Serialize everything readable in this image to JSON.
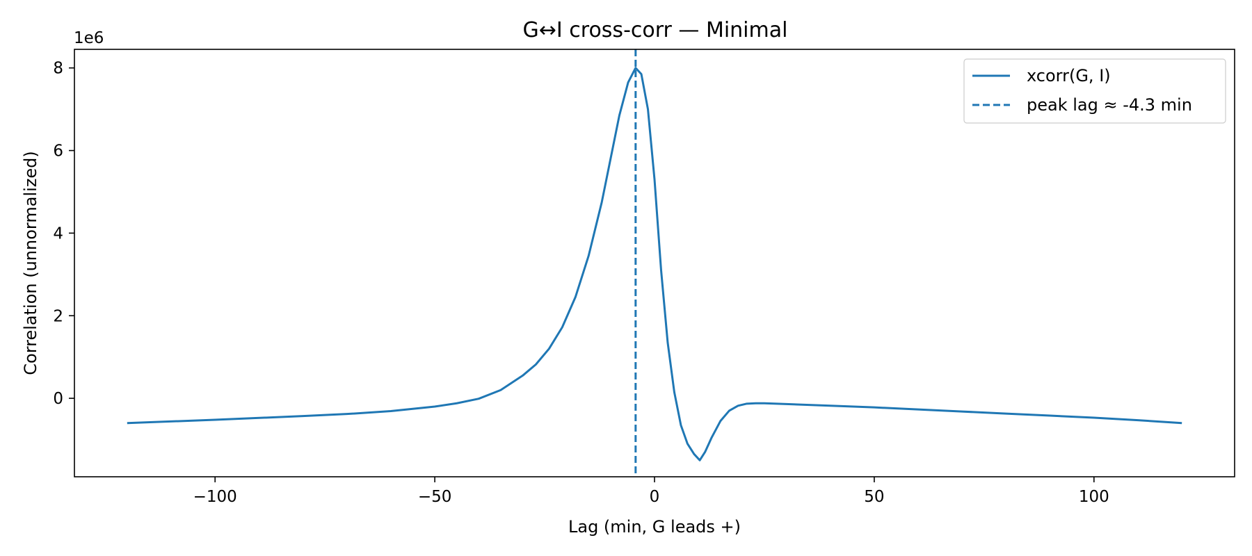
{
  "chart_data": {
    "type": "line",
    "title": "G↔I cross-corr — Minimal",
    "xlabel": "Lag (min, G leads +)",
    "ylabel": "Correlation (unnormalized)",
    "y_offset_label": "1e6",
    "xlim": [
      -132,
      132
    ],
    "ylim": [
      -1.9,
      8.45
    ],
    "xticks": [
      -100,
      -50,
      0,
      50,
      100
    ],
    "xtick_labels": [
      "−100",
      "−50",
      "0",
      "50",
      "100"
    ],
    "yticks": [
      0,
      2,
      4,
      6,
      8
    ],
    "ytick_labels": [
      "0",
      "2",
      "4",
      "6",
      "8"
    ],
    "grid": false,
    "legend": {
      "position": "top-right"
    },
    "colors": {
      "line": "#1f77b4"
    },
    "series": [
      {
        "name": "xcorr(G, I)",
        "style": "solid",
        "x": [
          -120,
          -100,
          -80,
          -70,
          -60,
          -50,
          -45,
          -40,
          -35,
          -30,
          -27,
          -24,
          -21,
          -18,
          -15,
          -12,
          -10,
          -8,
          -6,
          -4.3,
          -3,
          -1.5,
          0,
          1.5,
          3,
          4.5,
          6,
          7.5,
          9,
          10.3,
          11.5,
          13,
          15,
          17,
          19,
          21,
          23,
          25,
          30,
          40,
          50,
          60,
          70,
          80,
          90,
          100,
          110,
          120
        ],
        "y": [
          -0.6,
          -0.52,
          -0.43,
          -0.38,
          -0.31,
          -0.2,
          -0.12,
          -0.01,
          0.2,
          0.55,
          0.82,
          1.2,
          1.72,
          2.45,
          3.45,
          4.75,
          5.8,
          6.85,
          7.65,
          8.0,
          7.85,
          7.0,
          5.3,
          3.1,
          1.35,
          0.15,
          -0.65,
          -1.1,
          -1.35,
          -1.5,
          -1.3,
          -0.95,
          -0.55,
          -0.3,
          -0.18,
          -0.13,
          -0.12,
          -0.12,
          -0.14,
          -0.18,
          -0.22,
          -0.27,
          -0.32,
          -0.37,
          -0.42,
          -0.47,
          -0.53,
          -0.6
        ]
      },
      {
        "name": "peak lag ≈ -4.3 min",
        "style": "dashed",
        "vline_x": -4.3
      }
    ]
  }
}
